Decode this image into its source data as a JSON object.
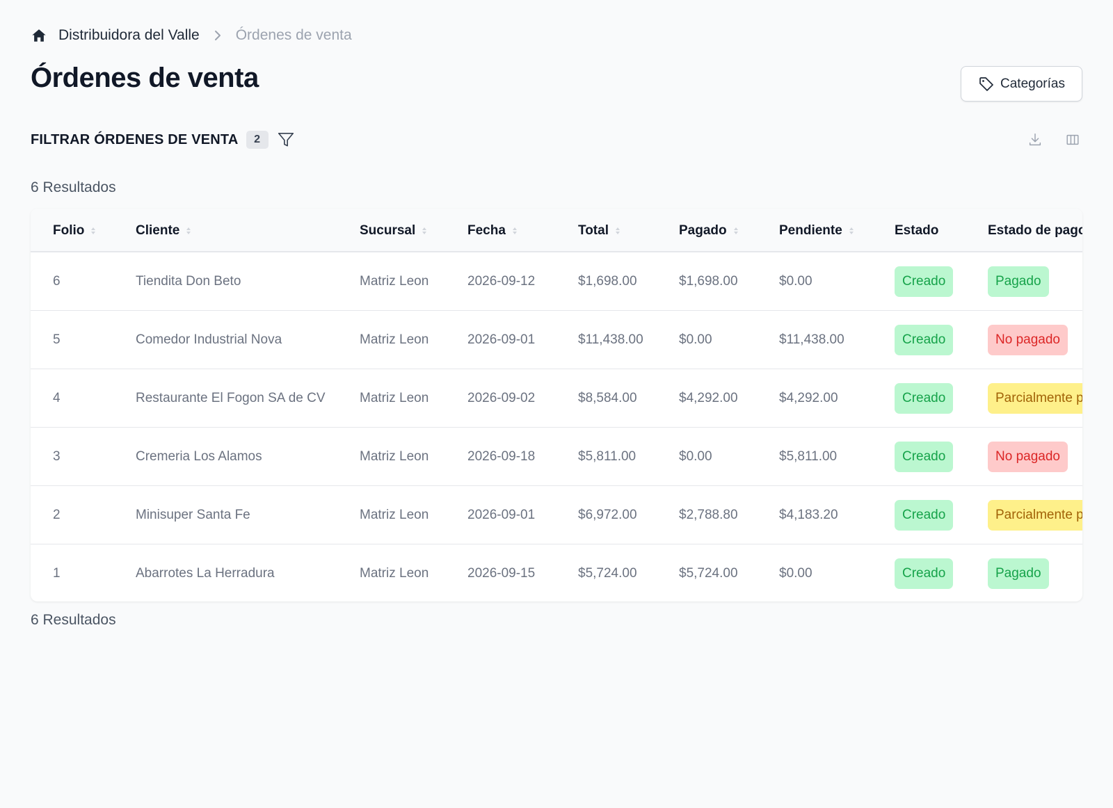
{
  "breadcrumb": {
    "root": "Distribuidora del Valle",
    "current": "Órdenes de venta"
  },
  "page_title": "Órdenes de venta",
  "categories_button": {
    "label": "Categorías",
    "icon": "tag-icon"
  },
  "filter": {
    "title": "FILTRAR ÓRDENES DE VENTA",
    "count": "2",
    "icon": "filter-icon"
  },
  "toolbar": {
    "download_icon": "download-icon",
    "columns_icon": "columns-icon"
  },
  "results_top": "6 Resultados",
  "results_bottom": "6 Resultados",
  "table": {
    "headers": {
      "folio": "Folio",
      "cliente": "Cliente",
      "sucursal": "Sucursal",
      "fecha": "Fecha",
      "total": "Total",
      "pagado": "Pagado",
      "pendiente": "Pendiente",
      "estado": "Estado",
      "estado_pago": "Estado de pago"
    },
    "rows": [
      {
        "folio": "6",
        "cliente": "Tiendita Don Beto",
        "sucursal": "Matriz Leon",
        "fecha": "2026-09-12",
        "total": "$1,698.00",
        "pagado": "$1,698.00",
        "pendiente": "$0.00",
        "estado": "Creado",
        "estado_pago": "Pagado",
        "estado_pago_color": "green"
      },
      {
        "folio": "5",
        "cliente": "Comedor Industrial Nova",
        "sucursal": "Matriz Leon",
        "fecha": "2026-09-01",
        "total": "$11,438.00",
        "pagado": "$0.00",
        "pendiente": "$11,438.00",
        "estado": "Creado",
        "estado_pago": "No pagado",
        "estado_pago_color": "red"
      },
      {
        "folio": "4",
        "cliente": "Restaurante El Fogon SA de CV",
        "sucursal": "Matriz Leon",
        "fecha": "2026-09-02",
        "total": "$8,584.00",
        "pagado": "$4,292.00",
        "pendiente": "$4,292.00",
        "estado": "Creado",
        "estado_pago": "Parcialmente pagado",
        "estado_pago_color": "yellow"
      },
      {
        "folio": "3",
        "cliente": "Cremeria Los Alamos",
        "sucursal": "Matriz Leon",
        "fecha": "2026-09-18",
        "total": "$5,811.00",
        "pagado": "$0.00",
        "pendiente": "$5,811.00",
        "estado": "Creado",
        "estado_pago": "No pagado",
        "estado_pago_color": "red"
      },
      {
        "folio": "2",
        "cliente": "Minisuper Santa Fe",
        "sucursal": "Matriz Leon",
        "fecha": "2026-09-01",
        "total": "$6,972.00",
        "pagado": "$2,788.80",
        "pendiente": "$4,183.20",
        "estado": "Creado",
        "estado_pago": "Parcialmente pagado",
        "estado_pago_color": "yellow"
      },
      {
        "folio": "1",
        "cliente": "Abarrotes La Herradura",
        "sucursal": "Matriz Leon",
        "fecha": "2026-09-15",
        "total": "$5,724.00",
        "pagado": "$5,724.00",
        "pendiente": "$0.00",
        "estado": "Creado",
        "estado_pago": "Pagado",
        "estado_pago_color": "green"
      }
    ]
  },
  "colors": {
    "background": "#f9fafb",
    "badge_green_bg": "#bbf7d0",
    "badge_red_bg": "#fecaca",
    "badge_yellow_bg": "#fef08a"
  }
}
